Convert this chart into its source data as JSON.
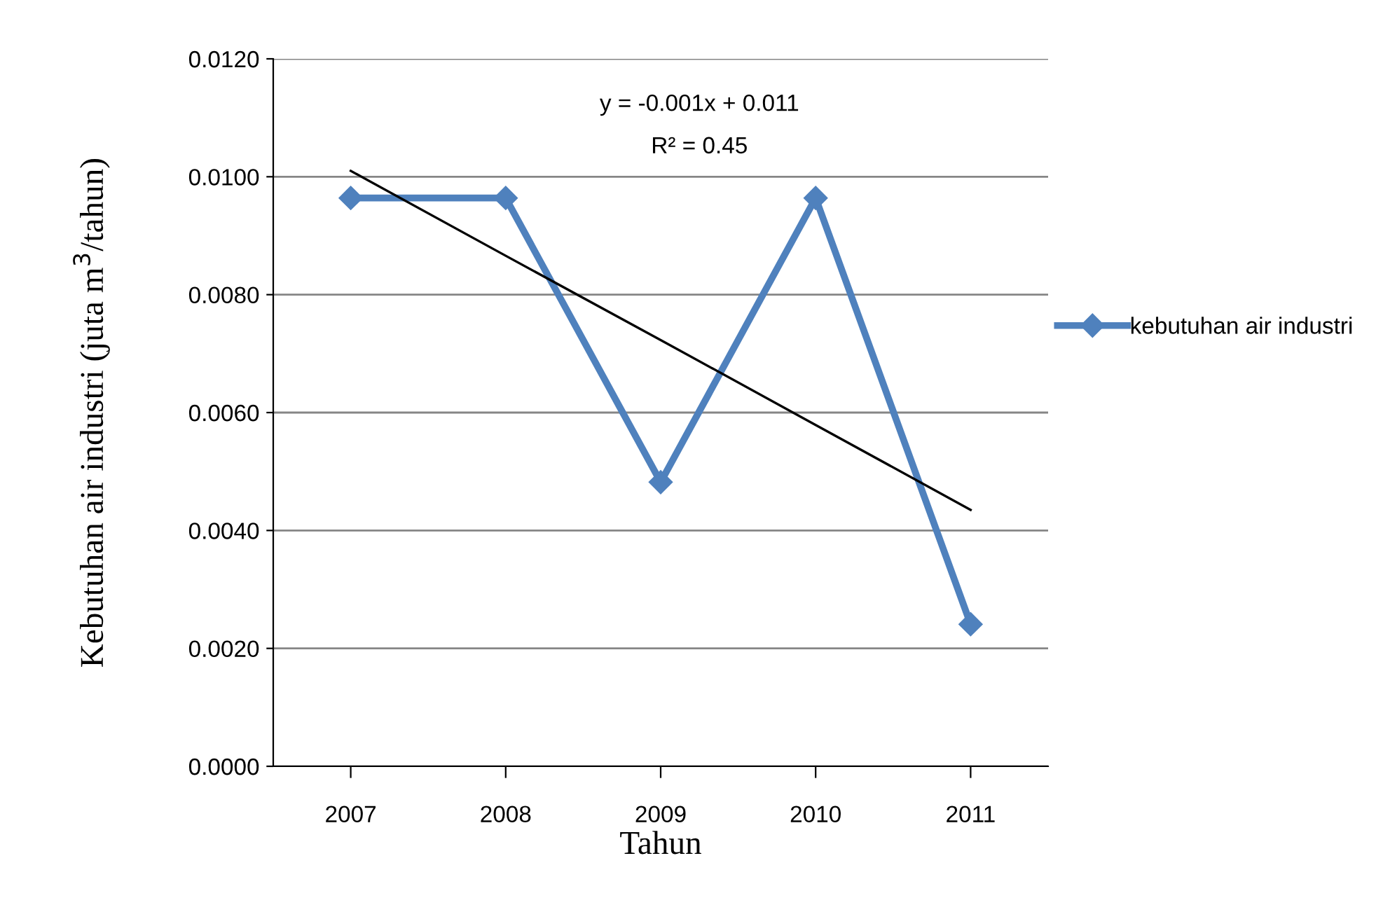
{
  "chart_data": {
    "type": "line",
    "xlabel": "Tahun",
    "ylabel": "Kebutuhan air industri (juta m$^{3}$/tahun)",
    "categories": [
      "2007",
      "2008",
      "2009",
      "2010",
      "2011"
    ],
    "series": [
      {
        "name": "kebutuhan air industri",
        "color": "#4f81bd",
        "values": [
          0.00964,
          0.00964,
          0.00482,
          0.00964,
          0.00241
        ],
        "marker": "diamond"
      },
      {
        "type": "line",
        "color": "#000000",
        "values": [
          0.0101,
          0.00866,
          0.00723,
          0.00579,
          0.00435
        ],
        "marker": "none"
      }
    ],
    "annotations": [
      "y = -0.001x + 0.011",
      "R² = 0.45"
    ],
    "ylim": [
      0,
      0.012
    ],
    "yticks": [
      {
        "value": 0,
        "label": "0.0000"
      },
      {
        "value": 0.002,
        "label": "0.0020"
      },
      {
        "value": 0.004,
        "label": "0.0040"
      },
      {
        "value": 0.006,
        "label": "0.0060"
      },
      {
        "value": 0.008,
        "label": "0.0080"
      },
      {
        "value": 0.01,
        "label": "0.0100"
      },
      {
        "value": 0.012,
        "label": "0.0120"
      }
    ],
    "grid": "y",
    "legend": "right"
  }
}
